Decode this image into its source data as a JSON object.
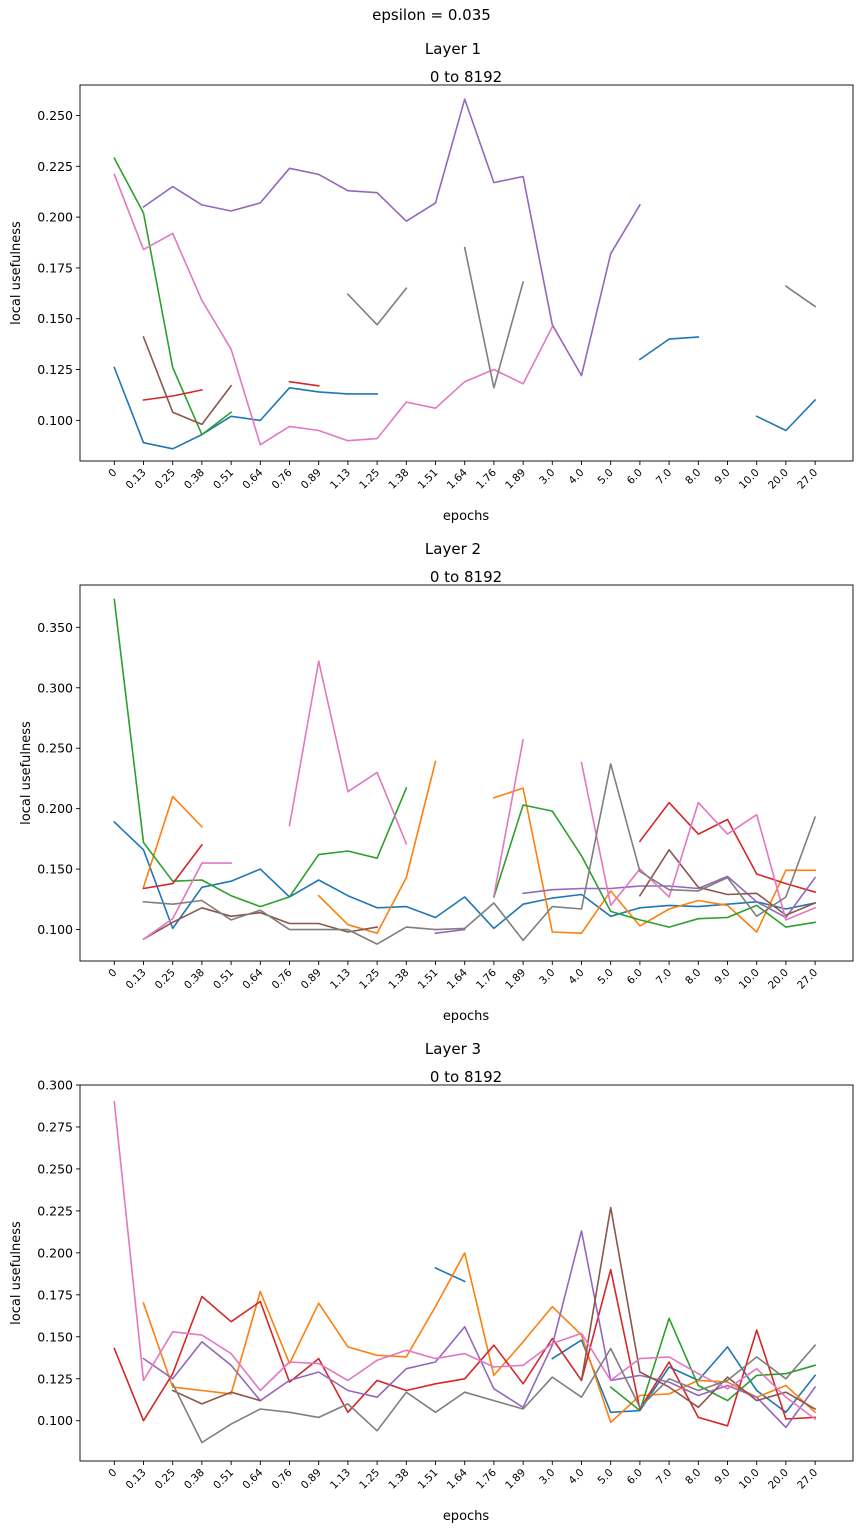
{
  "suptitle": "epsilon = 0.035",
  "chart_data": [
    {
      "type": "line",
      "title": "Layer 1",
      "subtitle": "0 to 8192",
      "xlabel": "epochs",
      "ylabel": "local usefulness",
      "categories": [
        "0",
        "0.13",
        "0.25",
        "0.38",
        "0.51",
        "0.64",
        "0.76",
        "0.89",
        "1.13",
        "1.25",
        "1.38",
        "1.51",
        "1.64",
        "1.76",
        "1.89",
        "3.0",
        "4.0",
        "5.0",
        "6.0",
        "7.0",
        "8.0",
        "9.0",
        "10.0",
        "20.0",
        "27.0"
      ],
      "ylim": [
        0.08,
        0.265
      ],
      "yticks": [
        0.1,
        0.125,
        0.15,
        0.175,
        0.2,
        0.225,
        0.25
      ],
      "series": [
        {
          "color": "#1f77b4",
          "values": [
            0.126,
            0.089,
            0.086,
            0.093,
            0.102,
            0.1,
            0.116,
            0.114,
            0.113,
            0.113,
            null,
            null,
            null,
            null,
            null,
            null,
            null,
            null,
            0.13,
            0.14,
            0.141,
            null,
            0.102,
            0.095,
            0.11
          ]
        },
        {
          "color": "#2ca02c",
          "values": [
            0.229,
            0.202,
            0.126,
            0.093,
            0.104,
            null,
            null,
            null,
            null,
            null,
            null,
            null,
            null,
            null,
            null,
            null,
            null,
            null,
            null,
            null,
            null,
            null,
            null,
            null,
            null
          ]
        },
        {
          "color": "#d62728",
          "values": [
            null,
            0.11,
            0.112,
            0.115,
            null,
            null,
            0.119,
            0.117,
            null,
            null,
            null,
            null,
            null,
            null,
            null,
            null,
            null,
            null,
            null,
            null,
            null,
            null,
            null,
            null,
            null
          ]
        },
        {
          "color": "#9467bd",
          "values": [
            null,
            0.205,
            0.215,
            0.206,
            0.203,
            0.207,
            0.224,
            0.221,
            0.213,
            0.212,
            0.198,
            0.207,
            0.258,
            0.217,
            0.22,
            0.147,
            0.122,
            0.182,
            0.206,
            null,
            null,
            null,
            null,
            null,
            null
          ]
        },
        {
          "color": "#8c564b",
          "values": [
            null,
            0.141,
            0.104,
            0.098,
            0.117,
            null,
            null,
            null,
            null,
            null,
            null,
            null,
            null,
            null,
            null,
            null,
            null,
            null,
            null,
            null,
            null,
            null,
            null,
            null,
            null
          ]
        },
        {
          "color": "#e377c2",
          "values": [
            0.221,
            0.184,
            0.192,
            0.159,
            0.135,
            0.088,
            0.097,
            0.095,
            0.09,
            0.091,
            0.109,
            0.106,
            0.119,
            0.125,
            0.118,
            0.146,
            null,
            null,
            null,
            null,
            null,
            null,
            null,
            null,
            null
          ]
        },
        {
          "color": "#7f7f7f",
          "values": [
            null,
            null,
            null,
            null,
            null,
            null,
            null,
            null,
            0.162,
            0.147,
            0.165,
            null,
            0.185,
            0.116,
            0.168,
            null,
            null,
            null,
            null,
            null,
            null,
            null,
            null,
            0.166,
            0.156
          ]
        }
      ]
    },
    {
      "type": "line",
      "title": "Layer 2",
      "subtitle": "0 to 8192",
      "xlabel": "epochs",
      "ylabel": "local usefulness",
      "categories": [
        "0",
        "0.13",
        "0.25",
        "0.38",
        "0.51",
        "0.64",
        "0.76",
        "0.89",
        "1.13",
        "1.25",
        "1.38",
        "1.51",
        "1.64",
        "1.76",
        "1.89",
        "3.0",
        "4.0",
        "5.0",
        "6.0",
        "7.0",
        "8.0",
        "9.0",
        "10.0",
        "20.0",
        "27.0"
      ],
      "ylim": [
        0.074,
        0.385
      ],
      "yticks": [
        0.1,
        0.15,
        0.2,
        0.25,
        0.3,
        0.35
      ],
      "series": [
        {
          "color": "#1f77b4",
          "values": [
            0.189,
            0.166,
            0.101,
            0.135,
            0.14,
            0.15,
            0.127,
            0.141,
            0.128,
            0.118,
            0.119,
            0.11,
            0.127,
            0.101,
            0.121,
            0.126,
            0.129,
            0.111,
            0.118,
            0.12,
            0.119,
            0.121,
            0.123,
            0.117,
            0.122
          ]
        },
        {
          "color": "#ff7f0e",
          "values": [
            null,
            0.135,
            0.21,
            0.185,
            null,
            null,
            null,
            0.128,
            0.104,
            0.097,
            0.143,
            0.239,
            null,
            0.209,
            0.217,
            0.098,
            0.097,
            0.132,
            0.103,
            0.117,
            0.124,
            0.12,
            0.098,
            0.149,
            0.149
          ]
        },
        {
          "color": "#2ca02c",
          "values": [
            0.373,
            0.172,
            0.14,
            0.141,
            0.128,
            0.119,
            0.127,
            0.162,
            0.165,
            0.159,
            0.217,
            null,
            null,
            0.127,
            0.203,
            0.198,
            0.161,
            0.115,
            0.108,
            0.102,
            0.109,
            0.11,
            0.12,
            0.102,
            0.106
          ]
        },
        {
          "color": "#d62728",
          "values": [
            null,
            0.134,
            0.138,
            0.17,
            null,
            null,
            null,
            null,
            null,
            null,
            null,
            null,
            null,
            null,
            null,
            null,
            null,
            null,
            0.173,
            0.205,
            0.179,
            0.191,
            0.146,
            0.138,
            0.131
          ]
        },
        {
          "color": "#9467bd",
          "values": [
            null,
            null,
            null,
            null,
            null,
            null,
            null,
            null,
            null,
            null,
            null,
            0.097,
            0.1,
            null,
            0.13,
            0.133,
            0.134,
            0.134,
            0.136,
            0.136,
            0.134,
            0.144,
            0.123,
            0.11,
            0.143
          ]
        },
        {
          "color": "#8c564b",
          "values": [
            null,
            0.092,
            0.106,
            0.118,
            0.111,
            0.114,
            0.105,
            0.105,
            0.098,
            0.102,
            null,
            null,
            null,
            null,
            null,
            null,
            null,
            null,
            0.128,
            0.166,
            0.135,
            0.129,
            0.13,
            0.112,
            0.122
          ]
        },
        {
          "color": "#e377c2",
          "values": [
            null,
            0.092,
            0.109,
            0.155,
            0.155,
            null,
            0.186,
            0.322,
            0.214,
            0.23,
            0.171,
            null,
            null,
            0.128,
            0.257,
            null,
            0.238,
            0.12,
            0.15,
            0.127,
            0.205,
            0.179,
            0.195,
            0.108,
            0.118
          ]
        },
        {
          "color": "#7f7f7f",
          "values": [
            null,
            0.123,
            0.121,
            0.124,
            0.108,
            0.116,
            0.1,
            0.1,
            0.1,
            0.088,
            0.102,
            0.1,
            0.101,
            0.122,
            0.091,
            0.119,
            0.117,
            0.237,
            0.148,
            0.133,
            0.132,
            0.143,
            0.111,
            0.127,
            0.193
          ]
        }
      ]
    },
    {
      "type": "line",
      "title": "Layer 3",
      "subtitle": "0 to 8192",
      "xlabel": "epochs",
      "ylabel": "local usefulness",
      "categories": [
        "0",
        "0.13",
        "0.25",
        "0.38",
        "0.51",
        "0.64",
        "0.76",
        "0.89",
        "1.13",
        "1.25",
        "1.38",
        "1.51",
        "1.64",
        "1.76",
        "1.89",
        "3.0",
        "4.0",
        "5.0",
        "6.0",
        "7.0",
        "8.0",
        "9.0",
        "10.0",
        "20.0",
        "27.0"
      ],
      "ylim": [
        0.076,
        0.3
      ],
      "yticks": [
        0.1,
        0.125,
        0.15,
        0.175,
        0.2,
        0.225,
        0.25,
        0.275,
        0.3
      ],
      "series": [
        {
          "color": "#1f77b4",
          "values": [
            null,
            null,
            null,
            null,
            null,
            null,
            null,
            null,
            null,
            null,
            null,
            0.191,
            0.183,
            null,
            null,
            0.137,
            0.148,
            0.105,
            0.106,
            0.132,
            0.124,
            0.144,
            0.118,
            0.105,
            0.127
          ]
        },
        {
          "color": "#ff7f0e",
          "values": [
            null,
            0.17,
            0.12,
            0.118,
            0.116,
            0.177,
            0.134,
            0.17,
            0.144,
            0.139,
            0.138,
            0.168,
            0.2,
            0.127,
            0.147,
            0.168,
            0.151,
            0.099,
            0.115,
            0.116,
            0.124,
            0.123,
            0.114,
            0.121,
            0.105
          ]
        },
        {
          "color": "#2ca02c",
          "values": [
            null,
            null,
            null,
            null,
            null,
            null,
            null,
            null,
            null,
            null,
            null,
            null,
            null,
            null,
            null,
            null,
            null,
            0.12,
            0.106,
            0.161,
            0.121,
            0.112,
            0.127,
            0.128,
            0.133
          ]
        },
        {
          "color": "#d62728",
          "values": [
            0.143,
            0.1,
            0.128,
            0.174,
            0.159,
            0.171,
            0.123,
            0.137,
            0.105,
            0.124,
            0.118,
            0.122,
            0.125,
            0.145,
            0.122,
            0.149,
            0.124,
            0.19,
            0.107,
            0.135,
            0.102,
            0.097,
            0.154,
            0.101,
            0.102
          ]
        },
        {
          "color": "#9467bd",
          "values": [
            null,
            0.137,
            0.125,
            0.147,
            0.133,
            0.112,
            0.124,
            0.129,
            0.118,
            0.114,
            0.131,
            0.135,
            0.156,
            0.119,
            0.108,
            0.145,
            0.213,
            0.124,
            0.127,
            0.123,
            0.115,
            0.121,
            0.114,
            0.096,
            0.12
          ]
        },
        {
          "color": "#8c564b",
          "values": [
            null,
            null,
            0.118,
            0.11,
            0.117,
            0.112,
            null,
            null,
            null,
            null,
            null,
            null,
            null,
            null,
            null,
            null,
            0.124,
            0.227,
            0.129,
            0.12,
            0.108,
            0.126,
            0.112,
            0.117,
            0.107
          ]
        },
        {
          "color": "#e377c2",
          "values": [
            0.29,
            0.124,
            0.153,
            0.151,
            0.14,
            0.118,
            0.135,
            0.134,
            0.124,
            0.136,
            0.142,
            0.137,
            0.14,
            0.132,
            0.133,
            0.146,
            0.152,
            0.124,
            0.137,
            0.138,
            0.128,
            0.119,
            0.131,
            0.114,
            0.101
          ]
        },
        {
          "color": "#7f7f7f",
          "values": [
            null,
            null,
            0.122,
            0.087,
            0.098,
            0.107,
            0.105,
            0.102,
            0.11,
            0.094,
            0.117,
            0.105,
            0.117,
            0.112,
            0.107,
            0.126,
            0.114,
            0.143,
            0.108,
            0.125,
            0.118,
            0.124,
            0.138,
            0.125,
            0.145
          ]
        }
      ]
    }
  ]
}
